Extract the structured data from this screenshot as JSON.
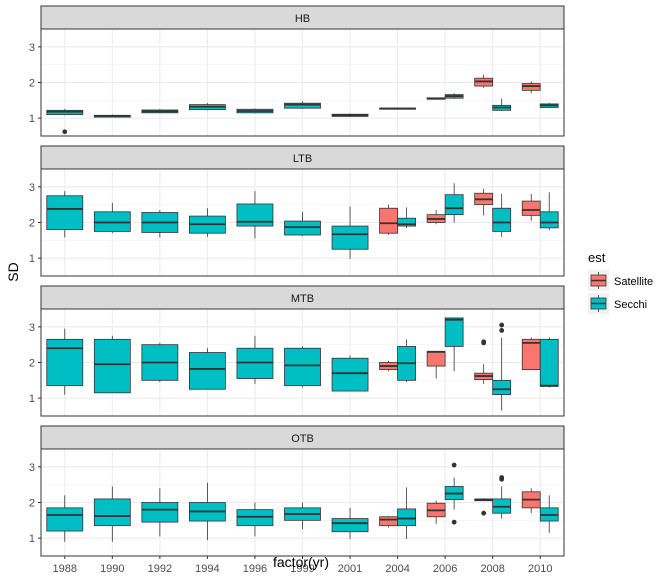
{
  "chart_data": {
    "type": "boxplot",
    "xlabel": "factor(yr)",
    "ylabel": "SD",
    "categories": [
      "1988",
      "1990",
      "1992",
      "1994",
      "1996",
      "1999",
      "2001",
      "2004",
      "2006",
      "2008",
      "2010"
    ],
    "ylim": [
      0.5,
      3.5
    ],
    "yticks": [
      1,
      2,
      3
    ],
    "grid": true,
    "legend": {
      "title": "est",
      "position": "right",
      "entries": [
        {
          "name": "Satellite",
          "color": "#F8766D"
        },
        {
          "name": "Secchi",
          "color": "#00BFC4"
        }
      ]
    },
    "panels": [
      {
        "title": "HB",
        "boxes": [
          {
            "x": "1988",
            "est": "Secchi",
            "lower": 1.08,
            "q1": 1.1,
            "median": 1.18,
            "q3": 1.22,
            "upper": 1.26,
            "outliers": [
              0.62
            ]
          },
          {
            "x": "1990",
            "est": "Secchi",
            "lower": 1.02,
            "q1": 1.03,
            "median": 1.06,
            "q3": 1.08,
            "upper": 1.1,
            "outliers": []
          },
          {
            "x": "1992",
            "est": "Secchi",
            "lower": 1.14,
            "q1": 1.15,
            "median": 1.19,
            "q3": 1.23,
            "upper": 1.25,
            "outliers": []
          },
          {
            "x": "1994",
            "est": "Secchi",
            "lower": 1.22,
            "q1": 1.24,
            "median": 1.32,
            "q3": 1.38,
            "upper": 1.42,
            "outliers": []
          },
          {
            "x": "1996",
            "est": "Secchi",
            "lower": 1.13,
            "q1": 1.15,
            "median": 1.2,
            "q3": 1.25,
            "upper": 1.27,
            "outliers": []
          },
          {
            "x": "1999",
            "est": "Secchi",
            "lower": 1.26,
            "q1": 1.28,
            "median": 1.38,
            "q3": 1.42,
            "upper": 1.47,
            "outliers": []
          },
          {
            "x": "2001",
            "est": "Secchi",
            "lower": 1.04,
            "q1": 1.05,
            "median": 1.08,
            "q3": 1.11,
            "upper": 1.13,
            "outliers": []
          },
          {
            "x": "2004",
            "est": "Secchi",
            "lower": 1.25,
            "q1": 1.25,
            "median": 1.27,
            "q3": 1.28,
            "upper": 1.28,
            "outliers": []
          },
          {
            "x": "2006",
            "est": "Satellite",
            "lower": 1.52,
            "q1": 1.53,
            "median": 1.55,
            "q3": 1.57,
            "upper": 1.58,
            "outliers": []
          },
          {
            "x": "2006",
            "est": "Secchi",
            "lower": 1.54,
            "q1": 1.56,
            "median": 1.62,
            "q3": 1.66,
            "upper": 1.7,
            "outliers": []
          },
          {
            "x": "2008",
            "est": "Satellite",
            "lower": 1.85,
            "q1": 1.9,
            "median": 2.03,
            "q3": 2.12,
            "upper": 2.22,
            "outliers": []
          },
          {
            "x": "2008",
            "est": "Secchi",
            "lower": 1.2,
            "q1": 1.22,
            "median": 1.3,
            "q3": 1.36,
            "upper": 1.55,
            "outliers": []
          },
          {
            "x": "2010",
            "est": "Satellite",
            "lower": 1.7,
            "q1": 1.78,
            "median": 1.9,
            "q3": 1.97,
            "upper": 2.03,
            "outliers": []
          },
          {
            "x": "2010",
            "est": "Secchi",
            "lower": 1.28,
            "q1": 1.3,
            "median": 1.36,
            "q3": 1.4,
            "upper": 1.43,
            "outliers": []
          }
        ]
      },
      {
        "title": "LTB",
        "boxes": [
          {
            "x": "1988",
            "est": "Secchi",
            "lower": 1.58,
            "q1": 1.8,
            "median": 2.38,
            "q3": 2.75,
            "upper": 2.88,
            "outliers": []
          },
          {
            "x": "1990",
            "est": "Secchi",
            "lower": 1.7,
            "q1": 1.75,
            "median": 2.0,
            "q3": 2.3,
            "upper": 2.55,
            "outliers": []
          },
          {
            "x": "1992",
            "est": "Secchi",
            "lower": 1.58,
            "q1": 1.72,
            "median": 2.0,
            "q3": 2.28,
            "upper": 2.35,
            "outliers": []
          },
          {
            "x": "1994",
            "est": "Secchi",
            "lower": 1.6,
            "q1": 1.7,
            "median": 1.95,
            "q3": 2.18,
            "upper": 2.4,
            "outliers": []
          },
          {
            "x": "1996",
            "est": "Secchi",
            "lower": 1.55,
            "q1": 1.9,
            "median": 2.02,
            "q3": 2.52,
            "upper": 2.88,
            "outliers": []
          },
          {
            "x": "1999",
            "est": "Secchi",
            "lower": 1.62,
            "q1": 1.65,
            "median": 1.87,
            "q3": 2.04,
            "upper": 2.3,
            "outliers": []
          },
          {
            "x": "2001",
            "est": "Secchi",
            "lower": 0.98,
            "q1": 1.25,
            "median": 1.67,
            "q3": 1.9,
            "upper": 2.45,
            "outliers": []
          },
          {
            "x": "2004",
            "est": "Satellite",
            "lower": 1.65,
            "q1": 1.7,
            "median": 1.98,
            "q3": 2.4,
            "upper": 2.5,
            "outliers": []
          },
          {
            "x": "2004",
            "est": "Secchi",
            "lower": 1.85,
            "q1": 1.9,
            "median": 1.95,
            "q3": 2.12,
            "upper": 2.42,
            "outliers": []
          },
          {
            "x": "2006",
            "est": "Satellite",
            "lower": 1.95,
            "q1": 2.0,
            "median": 2.1,
            "q3": 2.22,
            "upper": 2.35,
            "outliers": []
          },
          {
            "x": "2006",
            "est": "Secchi",
            "lower": 2.0,
            "q1": 2.22,
            "median": 2.4,
            "q3": 2.78,
            "upper": 3.1,
            "outliers": []
          },
          {
            "x": "2008",
            "est": "Satellite",
            "lower": 2.2,
            "q1": 2.5,
            "median": 2.65,
            "q3": 2.82,
            "upper": 2.95,
            "outliers": []
          },
          {
            "x": "2008",
            "est": "Secchi",
            "lower": 1.6,
            "q1": 1.75,
            "median": 2.0,
            "q3": 2.4,
            "upper": 2.8,
            "outliers": []
          },
          {
            "x": "2010",
            "est": "Satellite",
            "lower": 2.05,
            "q1": 2.2,
            "median": 2.35,
            "q3": 2.6,
            "upper": 2.8,
            "outliers": []
          },
          {
            "x": "2010",
            "est": "Secchi",
            "lower": 1.78,
            "q1": 1.85,
            "median": 2.0,
            "q3": 2.3,
            "upper": 2.85,
            "outliers": []
          }
        ]
      },
      {
        "title": "MTB",
        "boxes": [
          {
            "x": "1988",
            "est": "Secchi",
            "lower": 1.1,
            "q1": 1.35,
            "median": 2.4,
            "q3": 2.65,
            "upper": 2.95,
            "outliers": []
          },
          {
            "x": "1990",
            "est": "Secchi",
            "lower": 1.15,
            "q1": 1.15,
            "median": 1.95,
            "q3": 2.65,
            "upper": 2.75,
            "outliers": []
          },
          {
            "x": "1992",
            "est": "Secchi",
            "lower": 1.45,
            "q1": 1.5,
            "median": 2.0,
            "q3": 2.5,
            "upper": 2.55,
            "outliers": []
          },
          {
            "x": "1994",
            "est": "Secchi",
            "lower": 1.25,
            "q1": 1.25,
            "median": 1.82,
            "q3": 2.28,
            "upper": 2.4,
            "outliers": []
          },
          {
            "x": "1996",
            "est": "Secchi",
            "lower": 1.4,
            "q1": 1.55,
            "median": 2.0,
            "q3": 2.4,
            "upper": 2.75,
            "outliers": []
          },
          {
            "x": "1999",
            "est": "Secchi",
            "lower": 1.3,
            "q1": 1.35,
            "median": 1.92,
            "q3": 2.4,
            "upper": 2.45,
            "outliers": []
          },
          {
            "x": "2001",
            "est": "Secchi",
            "lower": 1.2,
            "q1": 1.2,
            "median": 1.7,
            "q3": 2.12,
            "upper": 2.2,
            "outliers": []
          },
          {
            "x": "2004",
            "est": "Satellite",
            "lower": 1.75,
            "q1": 1.8,
            "median": 1.9,
            "q3": 2.0,
            "upper": 2.05,
            "outliers": []
          },
          {
            "x": "2004",
            "est": "Secchi",
            "lower": 1.45,
            "q1": 1.5,
            "median": 1.98,
            "q3": 2.45,
            "upper": 2.65,
            "outliers": []
          },
          {
            "x": "2006",
            "est": "Satellite",
            "lower": 1.55,
            "q1": 1.9,
            "median": 2.3,
            "q3": 2.3,
            "upper": 2.3,
            "outliers": []
          },
          {
            "x": "2006",
            "est": "Secchi",
            "lower": 1.75,
            "q1": 2.45,
            "median": 3.2,
            "q3": 3.25,
            "upper": 3.25,
            "outliers": []
          },
          {
            "x": "2008",
            "est": "Satellite",
            "lower": 1.4,
            "q1": 1.52,
            "median": 1.62,
            "q3": 1.7,
            "upper": 1.95,
            "outliers": [
              2.55,
              2.58
            ]
          },
          {
            "x": "2008",
            "est": "Secchi",
            "lower": 0.65,
            "q1": 1.1,
            "median": 1.25,
            "q3": 1.5,
            "upper": 2.7,
            "outliers": [
              2.9,
              3.05
            ]
          },
          {
            "x": "2010",
            "est": "Satellite",
            "lower": 1.8,
            "q1": 1.8,
            "median": 2.55,
            "q3": 2.65,
            "upper": 2.7,
            "outliers": []
          },
          {
            "x": "2010",
            "est": "Secchi",
            "lower": 1.3,
            "q1": 1.33,
            "median": 1.35,
            "q3": 2.65,
            "upper": 2.7,
            "outliers": []
          }
        ]
      },
      {
        "title": "OTB",
        "boxes": [
          {
            "x": "1988",
            "est": "Secchi",
            "lower": 0.9,
            "q1": 1.2,
            "median": 1.65,
            "q3": 1.85,
            "upper": 2.2,
            "outliers": []
          },
          {
            "x": "1990",
            "est": "Secchi",
            "lower": 0.9,
            "q1": 1.35,
            "median": 1.62,
            "q3": 2.1,
            "upper": 2.45,
            "outliers": []
          },
          {
            "x": "1992",
            "est": "Secchi",
            "lower": 1.05,
            "q1": 1.45,
            "median": 1.8,
            "q3": 2.0,
            "upper": 2.4,
            "outliers": []
          },
          {
            "x": "1994",
            "est": "Secchi",
            "lower": 0.95,
            "q1": 1.48,
            "median": 1.75,
            "q3": 2.0,
            "upper": 2.55,
            "outliers": []
          },
          {
            "x": "1996",
            "est": "Secchi",
            "lower": 1.05,
            "q1": 1.35,
            "median": 1.6,
            "q3": 1.8,
            "upper": 2.0,
            "outliers": []
          },
          {
            "x": "1999",
            "est": "Secchi",
            "lower": 1.25,
            "q1": 1.5,
            "median": 1.68,
            "q3": 1.85,
            "upper": 2.0,
            "outliers": []
          },
          {
            "x": "2001",
            "est": "Secchi",
            "lower": 0.98,
            "q1": 1.18,
            "median": 1.42,
            "q3": 1.55,
            "upper": 1.85,
            "outliers": []
          },
          {
            "x": "2004",
            "est": "Satellite",
            "lower": 1.3,
            "q1": 1.35,
            "median": 1.52,
            "q3": 1.6,
            "upper": 1.62,
            "outliers": []
          },
          {
            "x": "2004",
            "est": "Secchi",
            "lower": 0.98,
            "q1": 1.35,
            "median": 1.55,
            "q3": 1.82,
            "upper": 2.42,
            "outliers": []
          },
          {
            "x": "2006",
            "est": "Satellite",
            "lower": 1.4,
            "q1": 1.6,
            "median": 1.78,
            "q3": 1.98,
            "upper": 2.05,
            "outliers": []
          },
          {
            "x": "2006",
            "est": "Secchi",
            "lower": 1.8,
            "q1": 2.08,
            "median": 2.25,
            "q3": 2.45,
            "upper": 2.7,
            "outliers": [
              3.05,
              1.45
            ]
          },
          {
            "x": "2008",
            "est": "Satellite",
            "lower": 2.05,
            "q1": 2.05,
            "median": 2.08,
            "q3": 2.1,
            "upper": 2.12,
            "outliers": [
              1.7
            ]
          },
          {
            "x": "2008",
            "est": "Secchi",
            "lower": 1.55,
            "q1": 1.7,
            "median": 1.88,
            "q3": 2.1,
            "upper": 2.45,
            "outliers": [
              2.65,
              2.7
            ]
          },
          {
            "x": "2010",
            "est": "Satellite",
            "lower": 1.7,
            "q1": 1.85,
            "median": 2.08,
            "q3": 2.3,
            "upper": 2.4,
            "outliers": []
          },
          {
            "x": "2010",
            "est": "Secchi",
            "lower": 1.15,
            "q1": 1.48,
            "median": 1.65,
            "q3": 1.85,
            "upper": 2.2,
            "outliers": []
          }
        ]
      }
    ]
  }
}
